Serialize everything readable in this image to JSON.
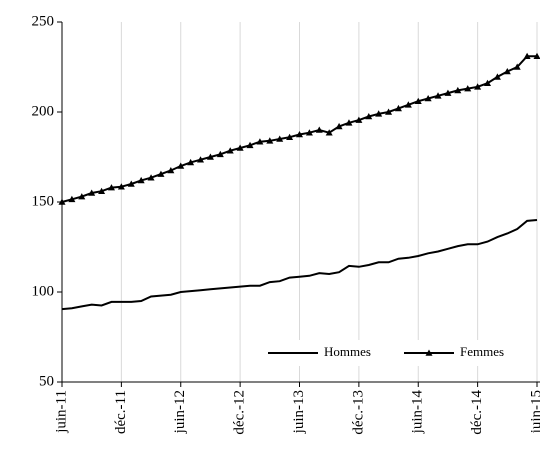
{
  "chart_data": {
    "type": "line",
    "categories": [
      "juin-11",
      null,
      null,
      null,
      null,
      null,
      "déc.-11",
      null,
      null,
      null,
      null,
      null,
      "juin-12",
      null,
      null,
      null,
      null,
      null,
      "déc.-12",
      null,
      null,
      null,
      null,
      null,
      "juin-13",
      null,
      null,
      null,
      null,
      null,
      "déc.-13",
      null,
      null,
      null,
      null,
      null,
      "juin-14",
      null,
      null,
      null,
      null,
      null,
      "déc.-14",
      null,
      null,
      null,
      null,
      null,
      "juin-15"
    ],
    "series": [
      {
        "name": "Hommes",
        "color": "#000000",
        "marker": "none",
        "values": [
          90.5,
          91,
          92,
          93,
          92.5,
          94.5,
          94.5,
          94.5,
          95,
          97.5,
          98,
          98.5,
          100,
          100.5,
          101,
          101.5,
          102,
          102.5,
          103,
          103.5,
          103.5,
          105.5,
          106,
          108,
          108.5,
          109,
          110.5,
          110,
          111,
          114.5,
          114,
          115,
          116.5,
          116.5,
          118.5,
          119,
          120,
          121.5,
          122.5,
          124,
          125.5,
          126.5,
          126.5,
          128,
          130.5,
          132.5,
          135,
          139.5,
          140
        ]
      },
      {
        "name": "Femmes",
        "color": "#000000",
        "marker": "triangle",
        "values": [
          150,
          151.5,
          153,
          155,
          156,
          158,
          158.5,
          160,
          162,
          163.5,
          165.5,
          167.5,
          170,
          172,
          173.5,
          175,
          176.5,
          178.5,
          180,
          181.5,
          183.5,
          184,
          185,
          186,
          187.5,
          188.5,
          190,
          188.5,
          192,
          194,
          195.5,
          197.5,
          199,
          200,
          202,
          204,
          206,
          207.5,
          209,
          210.5,
          212,
          213,
          214,
          216,
          219.5,
          222.5,
          225,
          231,
          231
        ]
      }
    ],
    "ylim": [
      50,
      250
    ],
    "yticks": [
      50,
      100,
      150,
      200,
      250
    ],
    "grid": "x",
    "legend": "lower right"
  }
}
